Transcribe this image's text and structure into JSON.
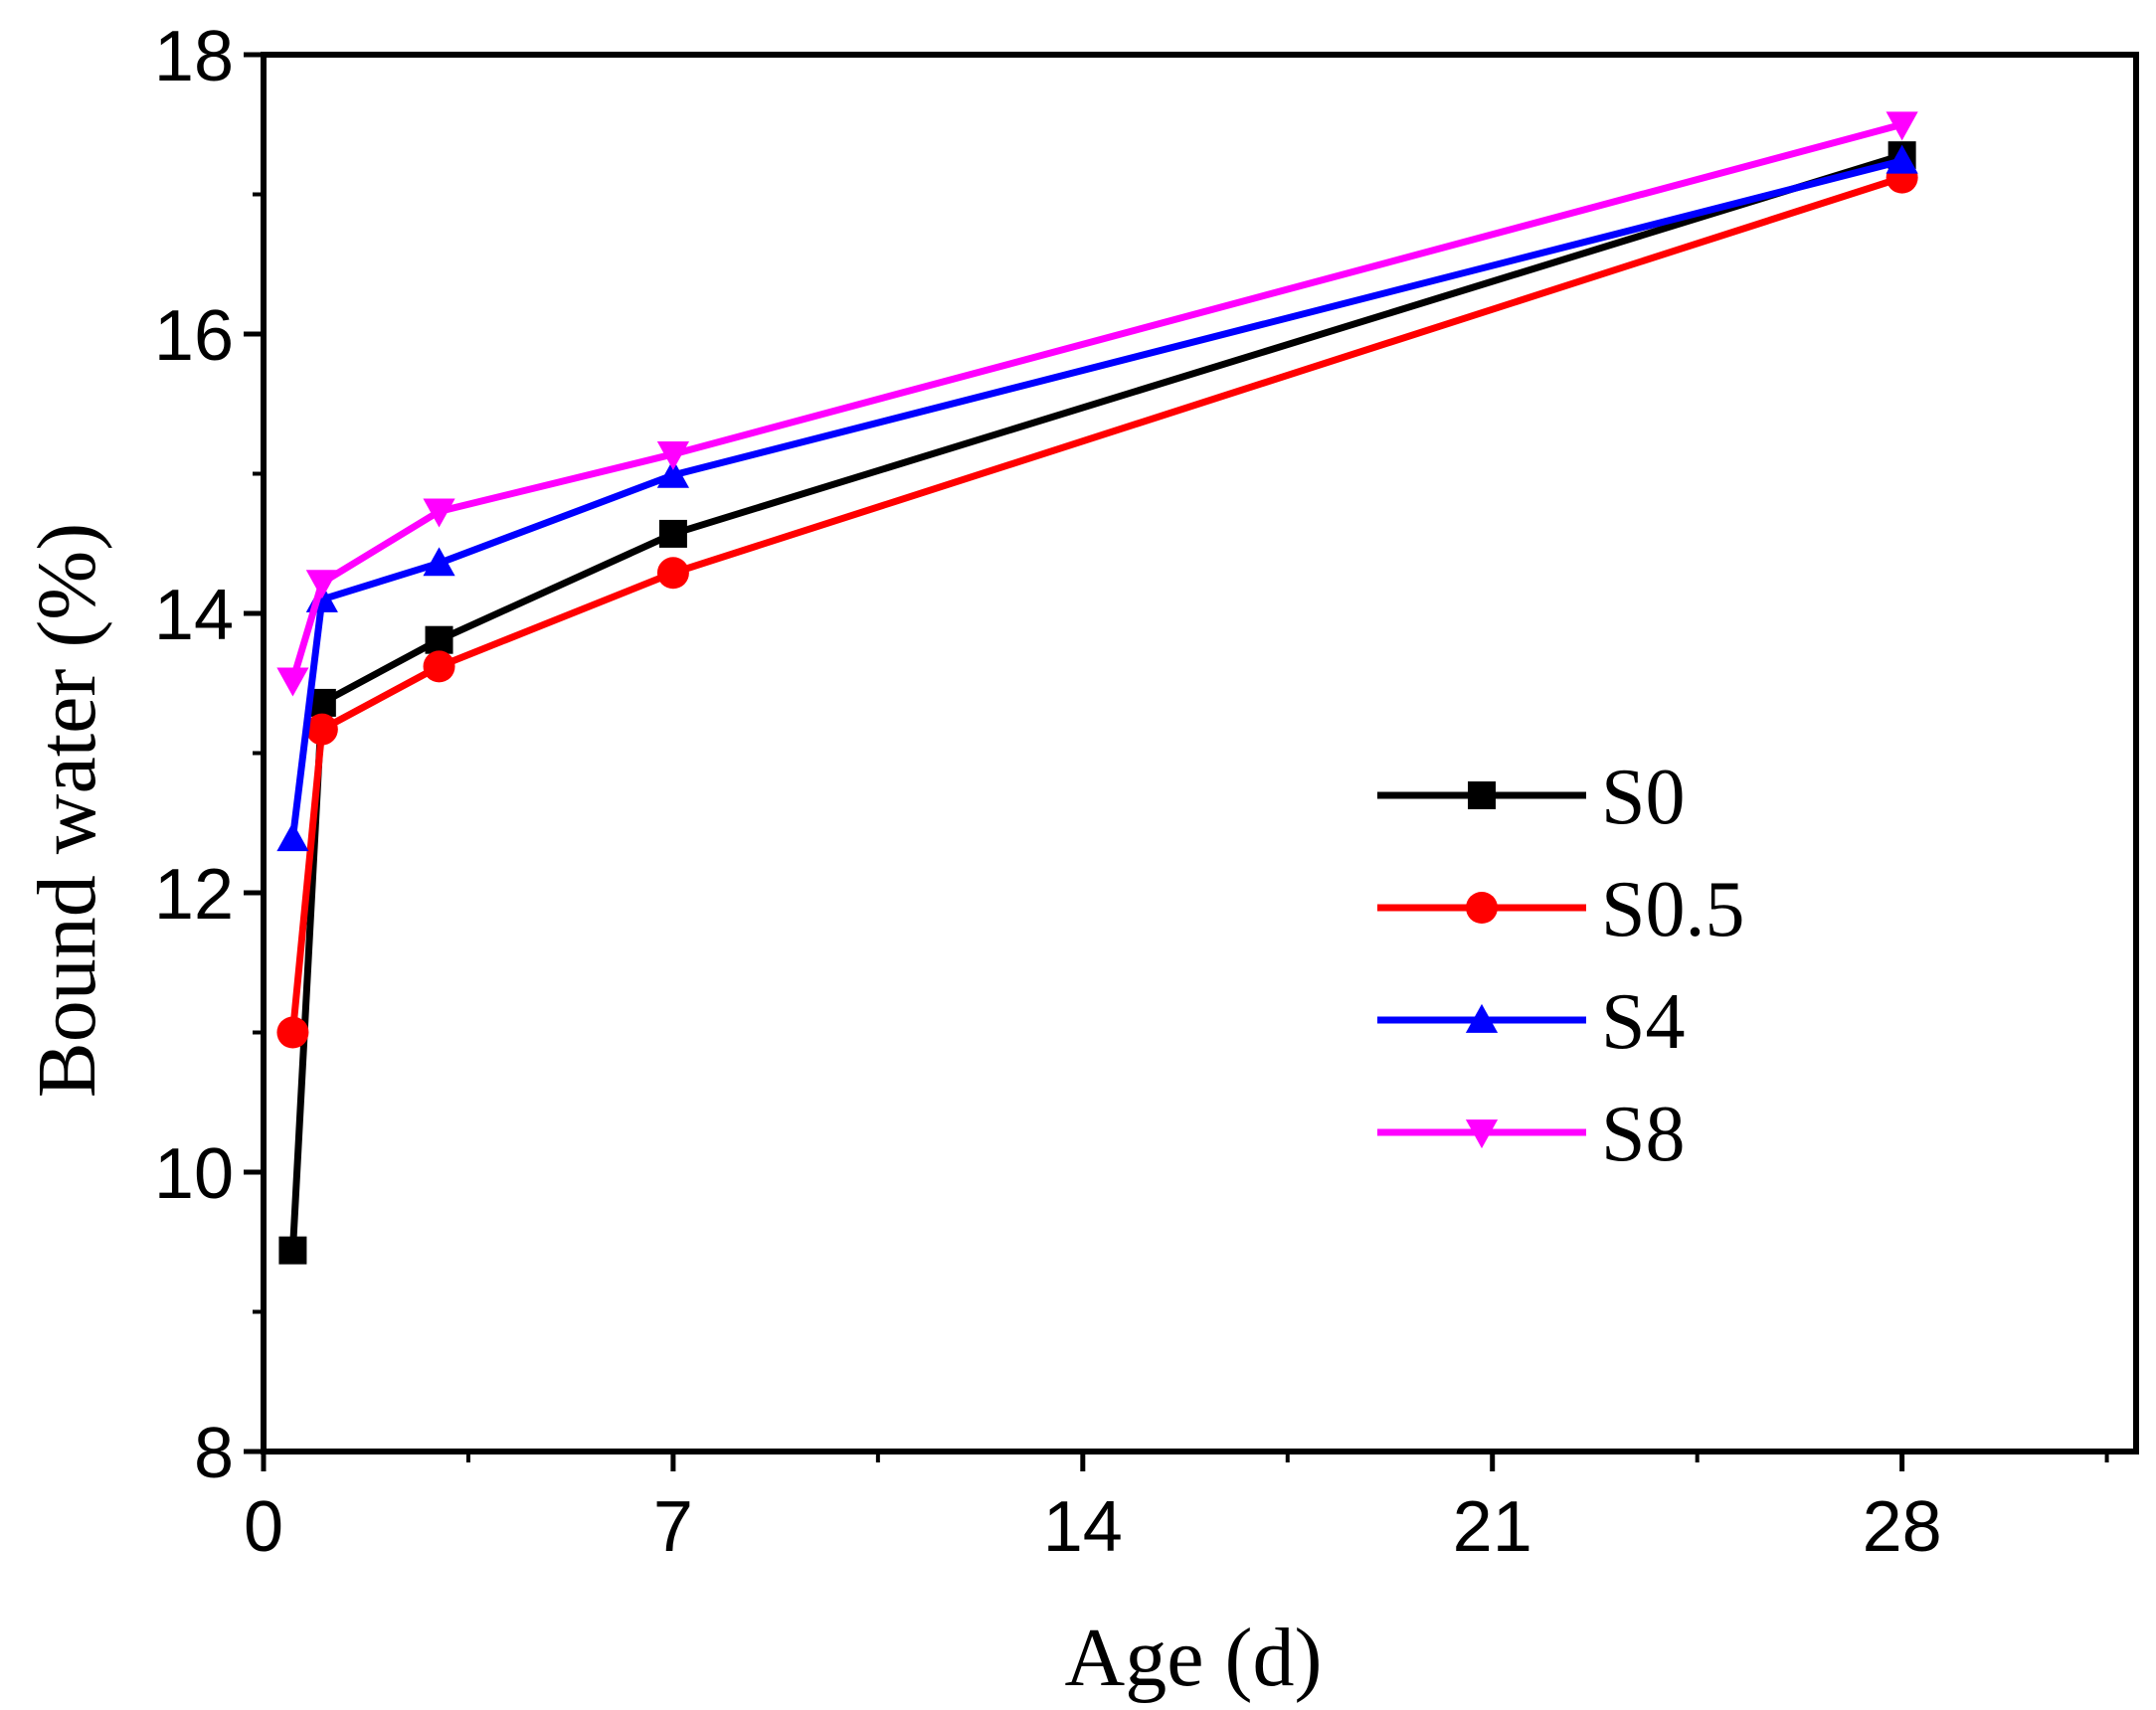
{
  "chart_data": {
    "type": "line",
    "title": "",
    "xlabel": "Age (d)",
    "ylabel": "Bound water (%)",
    "xlim": [
      0,
      32
    ],
    "ylim": [
      8,
      18
    ],
    "x_major_ticks": [
      0,
      7,
      14,
      21,
      28
    ],
    "x_tick_labels": [
      "0",
      "7",
      "14",
      "21",
      "28"
    ],
    "x_minor_ticks": [
      3.5,
      10.5,
      17.5,
      24.5,
      31.5
    ],
    "y_major_ticks": [
      8,
      10,
      12,
      14,
      16,
      18
    ],
    "y_tick_labels": [
      "8",
      "10",
      "12",
      "14",
      "16",
      "18"
    ],
    "y_minor_ticks": [
      9,
      11,
      13,
      15,
      17
    ],
    "grid": false,
    "legend_position": "right",
    "series": [
      {
        "name": "S0",
        "color": "#000000",
        "marker": "square",
        "x": [
          0.5,
          1,
          3,
          7,
          28
        ],
        "y": [
          9.44,
          13.36,
          13.81,
          14.57,
          17.28
        ]
      },
      {
        "name": "S0.5",
        "color": "#ff0000",
        "marker": "circle",
        "x": [
          0.5,
          1,
          3,
          7,
          28
        ],
        "y": [
          11.0,
          13.17,
          13.62,
          14.29,
          17.12
        ]
      },
      {
        "name": "S4",
        "color": "#0000ff",
        "marker": "triangle-up",
        "x": [
          0.5,
          1,
          3,
          7,
          28
        ],
        "y": [
          12.39,
          14.1,
          14.36,
          14.99,
          17.24
        ]
      },
      {
        "name": "S8",
        "color": "#ff00ff",
        "marker": "triangle-down",
        "x": [
          0.5,
          1,
          3,
          7,
          28
        ],
        "y": [
          13.52,
          14.22,
          14.73,
          15.14,
          17.5
        ]
      }
    ]
  }
}
